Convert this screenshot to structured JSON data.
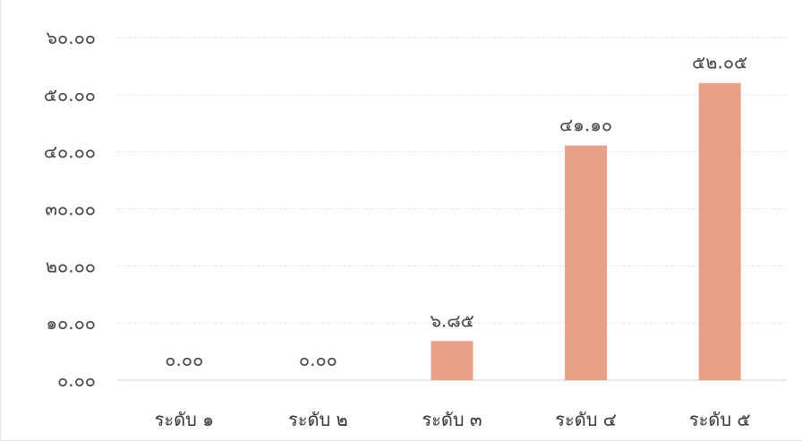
{
  "chart_data": {
    "type": "bar",
    "categories": [
      "ระดับ ๑",
      "ระดับ ๒",
      "ระดับ ๓",
      "ระดับ ๔",
      "ระดับ ๕"
    ],
    "values": [
      0.0,
      0.0,
      6.85,
      41.1,
      52.05
    ],
    "data_labels": [
      "๐.๐๐",
      "๐.๐๐",
      "๖.๘๕",
      "๔๑.๑๐",
      "๕๒.๐๕"
    ],
    "y_ticks": [
      0,
      10,
      20,
      30,
      40,
      50,
      60
    ],
    "y_tick_labels": [
      "๐.๐๐",
      "๑๐.๐๐",
      "๒๐.๐๐",
      "๓๐.๐๐",
      "๔๐.๐๐",
      "๕๐.๐๐",
      "๖๐.๐๐"
    ],
    "ylim": [
      0,
      60
    ],
    "title": "",
    "xlabel": "",
    "ylabel": "",
    "grid": true,
    "legend": "none",
    "bar_color": "#e8a088"
  }
}
